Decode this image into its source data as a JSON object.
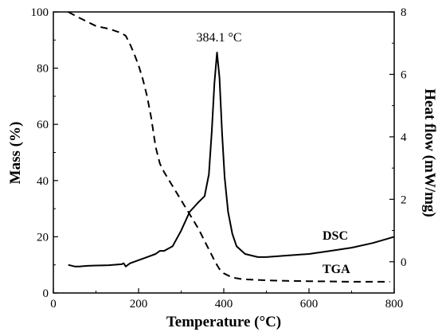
{
  "chart_data": {
    "type": "line",
    "xlabel": "Temperature (°C)",
    "ylabel_left": "Mass (%)",
    "ylabel_right": "Heat flow (mW/mg)",
    "xlim": [
      0,
      800
    ],
    "ylim_left": [
      0,
      100
    ],
    "ylim_right": [
      -1,
      8
    ],
    "xticks": [
      "0",
      "200",
      "400",
      "600",
      "800"
    ],
    "yticks_left": [
      "0",
      "20",
      "40",
      "60",
      "80",
      "100"
    ],
    "yticks_right": [
      "0",
      "2",
      "4",
      "6",
      "8"
    ],
    "annotation": "384.1 °C",
    "grid": false,
    "series": [
      {
        "name": "DSC",
        "axis": "right",
        "style": "solid",
        "color": "#000000",
        "x": [
          35,
          50,
          60,
          80,
          100,
          130,
          160,
          165,
          170,
          175,
          180,
          200,
          220,
          240,
          250,
          260,
          280,
          300,
          320,
          340,
          355,
          365,
          372,
          378,
          384.1,
          390,
          396,
          402,
          410,
          420,
          430,
          450,
          480,
          500,
          550,
          600,
          650,
          700,
          750,
          800
        ],
        "y": [
          -0.1,
          -0.15,
          -0.15,
          -0.13,
          -0.12,
          -0.11,
          -0.08,
          -0.05,
          -0.15,
          -0.1,
          -0.05,
          0.05,
          0.15,
          0.25,
          0.35,
          0.35,
          0.5,
          1.0,
          1.6,
          1.9,
          2.1,
          2.8,
          4.2,
          5.7,
          6.7,
          5.9,
          4.1,
          2.7,
          1.6,
          0.9,
          0.5,
          0.25,
          0.15,
          0.15,
          0.2,
          0.25,
          0.35,
          0.45,
          0.6,
          0.8
        ]
      },
      {
        "name": "TGA",
        "axis": "left",
        "style": "dashed",
        "color": "#000000",
        "x": [
          35,
          60,
          80,
          100,
          130,
          160,
          170,
          180,
          190,
          200,
          210,
          220,
          230,
          240,
          250,
          260,
          280,
          300,
          320,
          340,
          350,
          360,
          370,
          380,
          390,
          400,
          420,
          440,
          460,
          500,
          550,
          600,
          650,
          700,
          750,
          790
        ],
        "y": [
          100,
          98,
          96.5,
          95,
          94,
          92.5,
          91.5,
          88.5,
          85,
          81,
          76,
          70,
          62,
          52,
          46,
          43,
          38,
          33,
          28,
          23,
          20,
          17,
          14,
          11,
          8.5,
          7,
          5.5,
          5.0,
          4.8,
          4.5,
          4.3,
          4.2,
          4.1,
          4.0,
          4.0,
          4.0
        ]
      }
    ]
  }
}
